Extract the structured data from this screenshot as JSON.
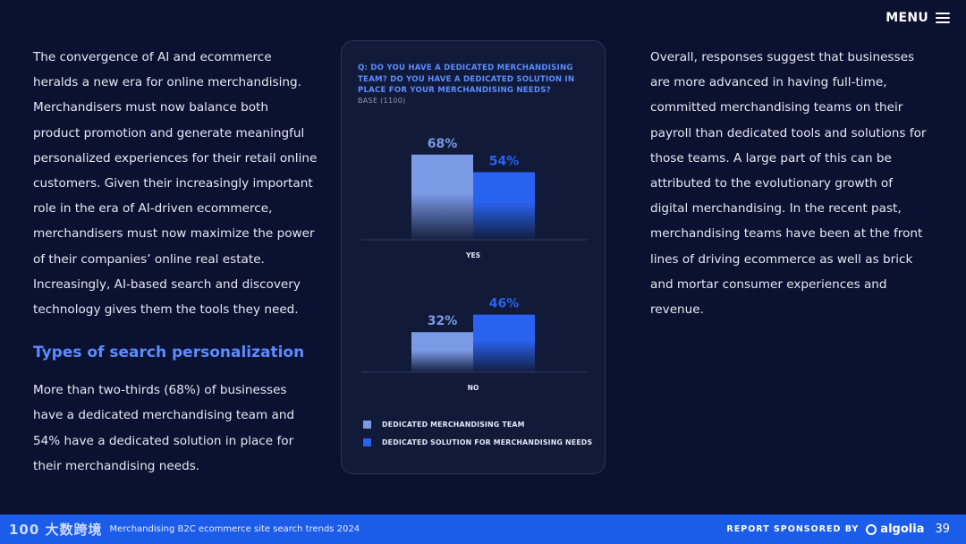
{
  "menu": {
    "label": "MENU",
    "icon": "hamburger-icon"
  },
  "left": {
    "paragraph1": [
      "The convergence of AI and ecommerce",
      "heralds a new era for online merchandising.",
      "Merchandisers must now balance both",
      "product promotion and generate meaningful",
      "personalized experiences for their retail online",
      "customers. Given their increasingly important",
      "role in the era of AI-driven ecommerce,",
      "merchandisers must now maximize the power",
      "of their companies’ online real estate.",
      "Increasingly, AI-based search and discovery",
      "technology gives them the tools they need."
    ],
    "heading": "Types of search personalization",
    "paragraph2": [
      "More than two-thirds (68%) of businesses",
      "have a dedicated merchandising team and",
      "54% have a dedicated solution in place for",
      "their merchandising needs."
    ]
  },
  "right": {
    "paragraph": [
      "Overall, responses suggest that businesses",
      "are more advanced in having full-time,",
      "committed merchandising teams on their",
      "payroll than dedicated tools and solutions for",
      "those teams. A large part of this can be",
      "attributed to the evolutionary growth of",
      "digital merchandising. In the recent past,",
      "merchandising teams have been at the front",
      "lines of driving ecommerce as well as brick",
      "and mortar consumer experiences and",
      "revenue."
    ]
  },
  "chart_data": {
    "type": "bar",
    "title": "Q: DO YOU HAVE A DEDICATED MERCHANDISING TEAM? DO YOU HAVE A DEDICATED SOLUTION IN PLACE FOR YOUR MERCHANDISING NEEDS?",
    "subtitle": "BASE (1100)",
    "categories": [
      "YES",
      "NO"
    ],
    "series": [
      {
        "name": "DEDICATED MERCHANDISING TEAM",
        "values": [
          68,
          32
        ],
        "color": "#7b9ae6"
      },
      {
        "name": "DEDICATED SOLUTION FOR MERCHANDISING NEEDS",
        "values": [
          54,
          46
        ],
        "color": "#2962ee"
      }
    ],
    "value_labels": [
      [
        "68%",
        "32%"
      ],
      [
        "54%",
        "46%"
      ]
    ],
    "legend_position": "bottom-left",
    "grid": false,
    "ylim": [
      0,
      100
    ]
  },
  "footer": {
    "logo": "100 大数跨境",
    "left_text": "Merchandising B2C ecommerce site search trends 2024",
    "sponsor": "REPORT SPONSORED BY",
    "brand": "algolia",
    "page": "39",
    "colors": {
      "bar": "#1b5ce8"
    }
  }
}
